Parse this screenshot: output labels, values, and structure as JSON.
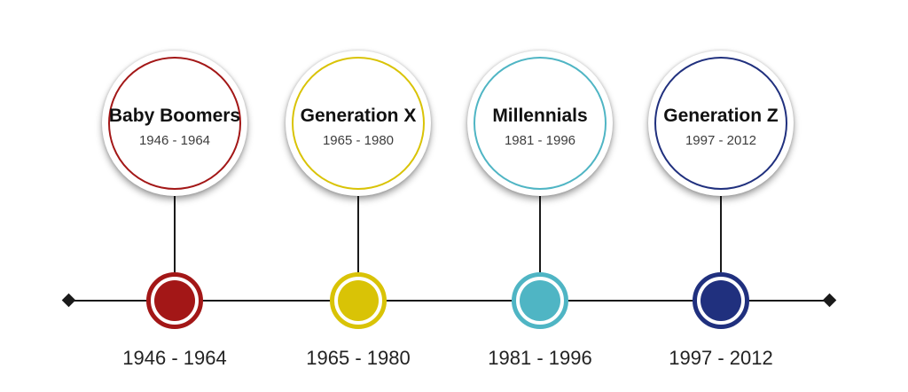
{
  "canvas": {
    "background_color": "#ffffff"
  },
  "timeline": {
    "line_color": "#1a1a1a",
    "endpoint_shape": "diamond"
  },
  "generations": [
    {
      "title": "Baby Boomers",
      "period": "1946 - 1964",
      "axis_label": "1946 - 1964",
      "color": "#A31717"
    },
    {
      "title": "Generation X",
      "period": "1965 - 1980",
      "axis_label": "1965 - 1980",
      "color": "#D9C306"
    },
    {
      "title": "Millennials",
      "period": "1981 - 1996",
      "axis_label": "1981 - 1996",
      "color": "#4FB5C4"
    },
    {
      "title": "Generation Z",
      "period": "1997 - 2012",
      "axis_label": "1997 - 2012",
      "color": "#20307E"
    }
  ]
}
